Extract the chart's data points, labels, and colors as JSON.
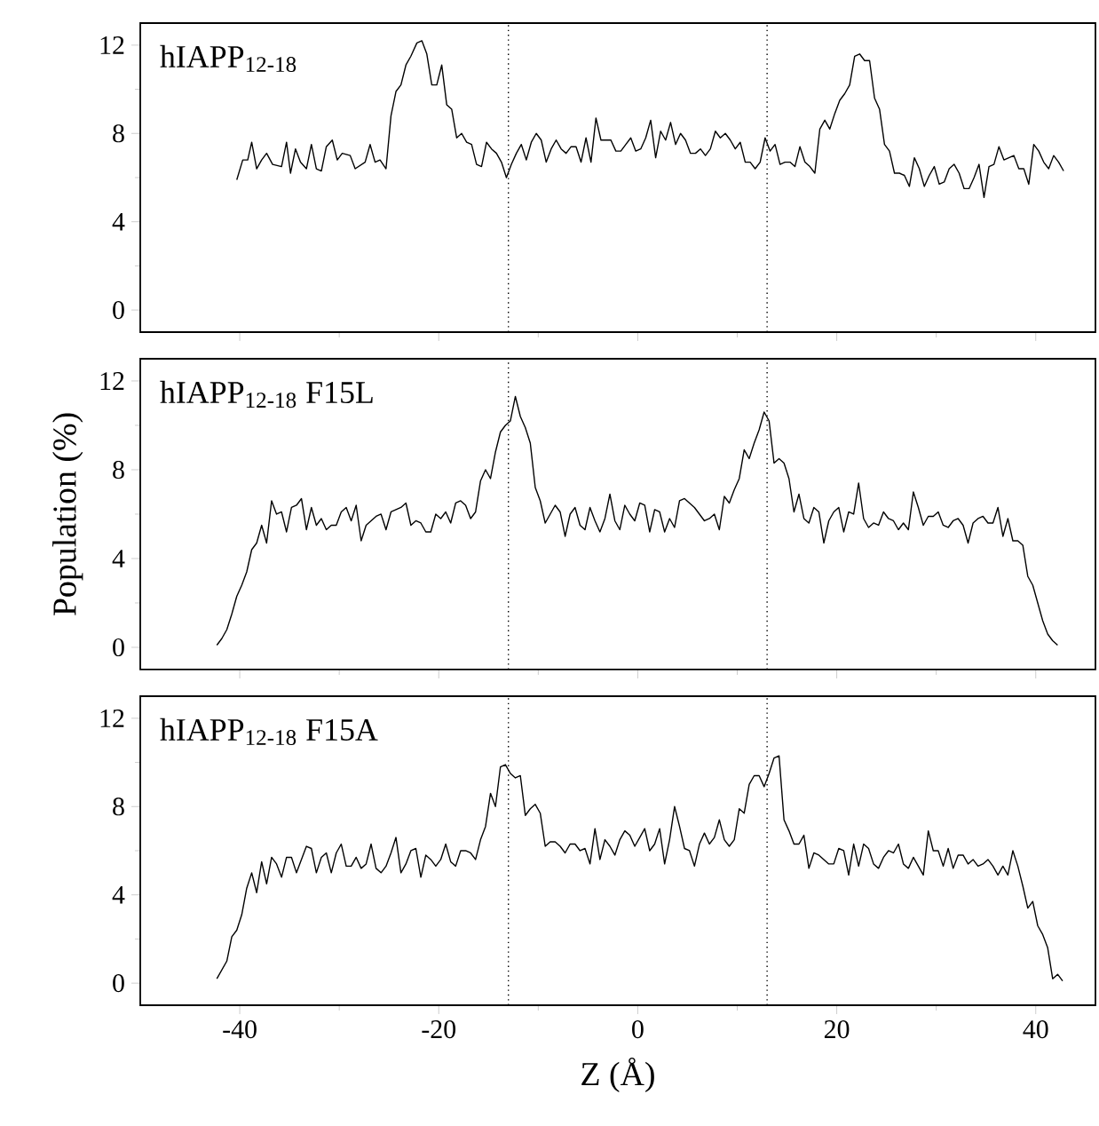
{
  "chart_data": [
    {
      "type": "line",
      "title": "hIAPP$_{12-18}$",
      "xlim": [
        -50,
        46
      ],
      "ylim": [
        -1,
        13
      ],
      "xticks": [
        -40,
        -20,
        0,
        20,
        40
      ],
      "yticks": [
        0,
        4,
        8,
        12
      ],
      "tick_labels": "y",
      "marker": "none",
      "line_style": "solid",
      "ref_lines": [
        {
          "axis": "x",
          "value": -13,
          "line_style": "dotted",
          "color": "#000000"
        },
        {
          "axis": "x",
          "value": 13,
          "line_style": "dotted",
          "color": "#000000"
        }
      ],
      "series": [
        {
          "color": "#000000",
          "x": [
            -40.3,
            -39.7,
            -39.2,
            -38.8,
            -38.3,
            -37.8,
            -37.3,
            -36.7,
            -35.8,
            -35.3,
            -34.9,
            -34.4,
            -33.9,
            -33.3,
            -32.8,
            -32.3,
            -31.8,
            -31.3,
            -30.7,
            -30.2,
            -29.7,
            -28.9,
            -28.4,
            -27.4,
            -26.9,
            -26.4,
            -25.9,
            -25.3,
            -24.8,
            -24.3,
            -23.8,
            -23.3,
            -22.8,
            -22.2,
            -21.7,
            -21.2,
            -20.7,
            -20.2,
            -19.7,
            -19.2,
            -18.7,
            -18.2,
            -17.7,
            -17.2,
            -16.7,
            -16.2,
            -15.7,
            -15.2,
            -14.7,
            -14.2,
            -13.7,
            -13.2,
            -12.7,
            -12.2,
            -11.7,
            -11.2,
            -10.7,
            -10.2,
            -9.7,
            -9.2,
            -8.7,
            -8.2,
            -7.7,
            -7.2,
            -6.7,
            -6.2,
            -5.7,
            -5.2,
            -4.7,
            -4.2,
            -3.7,
            -3.2,
            -2.7,
            -2.2,
            -1.7,
            -1.2,
            -0.7,
            -0.2,
            0.3,
            0.8,
            1.3,
            1.8,
            2.3,
            2.8,
            3.3,
            3.8,
            4.3,
            4.8,
            5.3,
            5.8,
            6.3,
            6.8,
            7.3,
            7.8,
            8.3,
            8.8,
            9.3,
            9.8,
            10.3,
            10.8,
            11.3,
            11.8,
            12.3,
            12.8,
            13.3,
            13.8,
            14.3,
            14.8,
            15.3,
            15.8,
            16.3,
            16.8,
            17.3,
            17.8,
            18.3,
            18.8,
            19.3,
            19.8,
            20.3,
            20.8,
            21.3,
            21.8,
            22.3,
            22.8,
            23.3,
            23.8,
            24.3,
            24.8,
            25.3,
            25.8,
            26.3,
            26.8,
            27.3,
            27.8,
            28.3,
            28.8,
            29.3,
            29.8,
            30.3,
            30.8,
            31.3,
            31.8,
            32.3,
            32.8,
            33.3,
            33.8,
            34.3,
            34.8,
            35.3,
            35.8,
            36.3,
            36.8,
            37.3,
            37.8,
            38.3,
            38.8,
            39.3,
            39.8,
            40.3,
            40.8,
            41.3,
            41.8,
            42.3,
            42.8
          ],
          "values": [
            5.9,
            6.8,
            6.8,
            7.6,
            6.4,
            6.8,
            7.1,
            6.6,
            6.5,
            7.6,
            6.2,
            7.3,
            6.7,
            6.4,
            7.5,
            6.4,
            6.3,
            7.4,
            7.7,
            6.8,
            7.1,
            7.0,
            6.4,
            6.7,
            7.5,
            6.7,
            6.8,
            6.4,
            8.8,
            9.9,
            10.2,
            11.1,
            11.5,
            12.1,
            12.2,
            11.6,
            10.2,
            10.2,
            11.1,
            9.3,
            9.1,
            7.8,
            8.0,
            7.6,
            7.5,
            6.6,
            6.5,
            7.6,
            7.3,
            7.1,
            6.7,
            6.0,
            6.6,
            7.1,
            7.5,
            6.8,
            7.6,
            8.0,
            7.7,
            6.7,
            7.3,
            7.7,
            7.3,
            7.1,
            7.4,
            7.4,
            6.7,
            7.8,
            6.7,
            8.7,
            7.7,
            7.7,
            7.7,
            7.2,
            7.2,
            7.5,
            7.8,
            7.2,
            7.3,
            7.8,
            8.6,
            6.9,
            8.1,
            7.7,
            8.5,
            7.5,
            8.0,
            7.7,
            7.1,
            7.1,
            7.3,
            7.0,
            7.3,
            8.1,
            7.8,
            8.0,
            7.7,
            7.3,
            7.6,
            6.7,
            6.7,
            6.4,
            6.7,
            7.8,
            7.2,
            7.5,
            6.6,
            6.7,
            6.7,
            6.5,
            7.4,
            6.7,
            6.5,
            6.2,
            8.2,
            8.6,
            8.2,
            8.9,
            9.5,
            9.8,
            10.2,
            11.5,
            11.6,
            11.3,
            11.3,
            9.6,
            9.1,
            7.5,
            7.2,
            6.2,
            6.2,
            6.1,
            5.6,
            6.9,
            6.4,
            5.6,
            6.1,
            6.5,
            5.7,
            5.8,
            6.4,
            6.6,
            6.2,
            5.5,
            5.5,
            6.0,
            6.6,
            5.1,
            6.5,
            6.6,
            7.4,
            6.8,
            6.9,
            7.0,
            6.4,
            6.4,
            5.7,
            7.5,
            7.2,
            6.7,
            6.4,
            7.0,
            6.7,
            6.3
          ]
        }
      ]
    },
    {
      "type": "line",
      "title": "hIAPP$_{12-18}$ F15L",
      "ylabel": "Population (%)",
      "xlim": [
        -50,
        46
      ],
      "ylim": [
        -1,
        13
      ],
      "xticks": [
        -40,
        -20,
        0,
        20,
        40
      ],
      "yticks": [
        0,
        4,
        8,
        12
      ],
      "tick_labels": "y",
      "marker": "none",
      "line_style": "solid",
      "ref_lines": [
        {
          "axis": "x",
          "value": -13,
          "line_style": "dotted",
          "color": "#000000"
        },
        {
          "axis": "x",
          "value": 13,
          "line_style": "dotted",
          "color": "#000000"
        }
      ],
      "series": [
        {
          "color": "#000000",
          "x": [
            -42.3,
            -41.8,
            -41.3,
            -40.8,
            -40.3,
            -39.8,
            -39.3,
            -38.8,
            -38.3,
            -37.8,
            -37.3,
            -36.8,
            -36.3,
            -35.8,
            -35.3,
            -34.8,
            -34.3,
            -33.8,
            -33.3,
            -32.8,
            -32.3,
            -31.8,
            -31.3,
            -30.8,
            -30.3,
            -29.8,
            -29.3,
            -28.8,
            -28.3,
            -27.8,
            -27.3,
            -26.8,
            -26.3,
            -25.8,
            -25.3,
            -24.8,
            -24.3,
            -23.8,
            -23.3,
            -22.8,
            -22.3,
            -21.8,
            -21.3,
            -20.8,
            -20.3,
            -19.8,
            -19.3,
            -18.8,
            -18.3,
            -17.8,
            -17.3,
            -16.8,
            -16.3,
            -15.8,
            -15.3,
            -14.8,
            -14.3,
            -13.8,
            -13.3,
            -12.8,
            -12.3,
            -11.8,
            -11.3,
            -10.8,
            -10.3,
            -9.8,
            -9.3,
            -8.8,
            -8.3,
            -7.8,
            -7.3,
            -6.8,
            -6.3,
            -5.8,
            -5.3,
            -4.8,
            -4.3,
            -3.8,
            -3.3,
            -2.8,
            -2.3,
            -1.8,
            -1.3,
            -0.8,
            -0.3,
            0.2,
            0.7,
            1.2,
            1.7,
            2.2,
            2.7,
            3.2,
            3.7,
            4.2,
            4.7,
            5.2,
            5.7,
            6.2,
            6.7,
            7.2,
            7.7,
            8.2,
            8.7,
            9.2,
            9.7,
            10.2,
            10.7,
            11.2,
            11.7,
            12.2,
            12.7,
            13.2,
            13.7,
            14.2,
            14.7,
            15.2,
            15.7,
            16.2,
            16.7,
            17.2,
            17.7,
            18.2,
            18.7,
            19.2,
            19.7,
            20.2,
            20.7,
            21.2,
            21.7,
            22.2,
            22.7,
            23.2,
            23.7,
            24.2,
            24.7,
            25.2,
            25.7,
            26.2,
            26.7,
            27.2,
            27.7,
            28.2,
            28.7,
            29.2,
            29.7,
            30.2,
            30.7,
            31.2,
            31.7,
            32.2,
            32.7,
            33.2,
            33.7,
            34.2,
            34.7,
            35.2,
            35.7,
            36.2,
            36.7,
            37.2,
            37.7,
            38.2,
            38.7,
            39.2,
            39.7,
            40.2,
            40.7,
            41.2,
            41.7,
            42.2
          ],
          "values": [
            0.1,
            0.4,
            0.8,
            1.5,
            2.3,
            2.8,
            3.4,
            4.4,
            4.7,
            5.5,
            4.7,
            6.6,
            6.0,
            6.1,
            5.2,
            6.3,
            6.4,
            6.7,
            5.3,
            6.3,
            5.5,
            5.8,
            5.3,
            5.5,
            5.5,
            6.1,
            6.3,
            5.7,
            6.4,
            4.8,
            5.5,
            5.7,
            5.9,
            6.0,
            5.3,
            6.1,
            6.2,
            6.3,
            6.5,
            5.5,
            5.7,
            5.6,
            5.2,
            5.2,
            6.0,
            5.8,
            6.1,
            5.6,
            6.5,
            6.6,
            6.4,
            5.8,
            6.1,
            7.5,
            8.0,
            7.6,
            8.8,
            9.7,
            10.0,
            10.2,
            11.3,
            10.4,
            9.9,
            9.2,
            7.2,
            6.6,
            5.6,
            6.0,
            6.4,
            6.1,
            5.0,
            6.0,
            6.3,
            5.5,
            5.3,
            6.3,
            5.7,
            5.2,
            5.8,
            6.9,
            5.7,
            5.3,
            6.4,
            6.0,
            5.7,
            6.5,
            6.4,
            5.2,
            6.2,
            6.1,
            5.2,
            5.8,
            5.4,
            6.6,
            6.7,
            6.5,
            6.3,
            6.0,
            5.7,
            5.8,
            6.0,
            5.3,
            6.8,
            6.5,
            7.1,
            7.6,
            8.9,
            8.5,
            9.2,
            9.8,
            10.6,
            10.2,
            8.3,
            8.5,
            8.3,
            7.6,
            6.1,
            6.9,
            5.8,
            5.6,
            6.3,
            6.1,
            4.7,
            5.7,
            6.1,
            6.3,
            5.2,
            6.1,
            6.0,
            7.4,
            5.8,
            5.4,
            5.6,
            5.5,
            6.1,
            5.8,
            5.7,
            5.3,
            5.6,
            5.3,
            7.0,
            6.3,
            5.5,
            5.9,
            5.9,
            6.1,
            5.5,
            5.4,
            5.7,
            5.8,
            5.5,
            4.7,
            5.6,
            5.8,
            5.9,
            5.6,
            5.6,
            6.3,
            5.0,
            5.8,
            4.8,
            4.8,
            4.6,
            3.2,
            2.8,
            2.0,
            1.2,
            0.6,
            0.3,
            0.1
          ]
        }
      ]
    },
    {
      "type": "line",
      "title": "hIAPP$_{12-18}$ F15A",
      "xlabel": "Z (Å)",
      "xlim": [
        -50,
        46
      ],
      "ylim": [
        -1,
        13
      ],
      "xticks": [
        -40,
        -20,
        0,
        20,
        40
      ],
      "yticks": [
        0,
        4,
        8,
        12
      ],
      "marker": "none",
      "line_style": "solid",
      "ref_lines": [
        {
          "axis": "x",
          "value": -13,
          "line_style": "dotted",
          "color": "#000000"
        },
        {
          "axis": "x",
          "value": 13,
          "line_style": "dotted",
          "color": "#000000"
        }
      ],
      "series": [
        {
          "color": "#000000",
          "x": [
            -42.3,
            -41.3,
            -40.8,
            -40.3,
            -39.8,
            -39.3,
            -38.8,
            -38.3,
            -37.8,
            -37.3,
            -36.8,
            -36.3,
            -35.8,
            -35.3,
            -34.8,
            -34.3,
            -33.8,
            -33.3,
            -32.8,
            -32.3,
            -31.8,
            -31.3,
            -30.8,
            -30.3,
            -29.8,
            -29.3,
            -28.8,
            -28.3,
            -27.8,
            -27.3,
            -26.8,
            -26.3,
            -25.8,
            -25.3,
            -24.8,
            -24.3,
            -23.8,
            -23.3,
            -22.8,
            -22.3,
            -21.8,
            -21.3,
            -20.8,
            -20.3,
            -19.8,
            -19.3,
            -18.8,
            -18.3,
            -17.8,
            -17.3,
            -16.8,
            -16.3,
            -15.8,
            -15.3,
            -14.8,
            -14.3,
            -13.8,
            -13.3,
            -12.8,
            -12.3,
            -11.8,
            -11.3,
            -10.8,
            -10.3,
            -9.8,
            -9.3,
            -8.8,
            -8.3,
            -7.8,
            -7.3,
            -6.8,
            -6.3,
            -5.8,
            -5.3,
            -4.8,
            -4.3,
            -3.8,
            -3.3,
            -2.8,
            -2.3,
            -1.8,
            -1.3,
            -0.8,
            -0.3,
            0.2,
            0.7,
            1.2,
            1.7,
            2.2,
            2.7,
            3.2,
            3.7,
            4.2,
            4.7,
            5.2,
            5.7,
            6.2,
            6.7,
            7.2,
            7.7,
            8.2,
            8.7,
            9.2,
            9.7,
            10.2,
            10.7,
            11.2,
            11.7,
            12.2,
            12.7,
            13.2,
            13.7,
            14.2,
            14.7,
            15.2,
            15.7,
            16.2,
            16.7,
            17.2,
            17.7,
            18.2,
            18.7,
            19.2,
            19.7,
            20.2,
            20.7,
            21.2,
            21.7,
            22.2,
            22.7,
            23.2,
            23.7,
            24.2,
            24.7,
            25.2,
            25.7,
            26.2,
            26.7,
            27.2,
            27.7,
            28.2,
            28.7,
            29.2,
            29.7,
            30.2,
            30.7,
            31.2,
            31.7,
            32.2,
            32.7,
            33.2,
            33.7,
            34.2,
            34.7,
            35.2,
            35.7,
            36.2,
            36.7,
            37.2,
            37.7,
            38.2,
            38.7,
            39.2,
            39.7,
            40.2,
            40.7,
            41.2,
            41.7,
            42.2,
            42.7
          ],
          "values": [
            0.2,
            1.0,
            2.1,
            2.4,
            3.1,
            4.3,
            5.0,
            4.1,
            5.5,
            4.5,
            5.7,
            5.4,
            4.8,
            5.7,
            5.7,
            5.0,
            5.6,
            6.2,
            6.1,
            5.0,
            5.7,
            5.9,
            5.0,
            5.9,
            6.3,
            5.3,
            5.3,
            5.7,
            5.2,
            5.4,
            6.3,
            5.2,
            5.0,
            5.3,
            5.9,
            6.6,
            5.0,
            5.4,
            6.0,
            6.1,
            4.8,
            5.8,
            5.6,
            5.3,
            5.6,
            6.3,
            5.5,
            5.3,
            6.0,
            6.0,
            5.9,
            5.6,
            6.5,
            7.1,
            8.6,
            8.0,
            9.8,
            9.9,
            9.5,
            9.3,
            9.4,
            7.6,
            7.9,
            8.1,
            7.7,
            6.2,
            6.4,
            6.4,
            6.2,
            5.9,
            6.3,
            6.3,
            6.0,
            6.1,
            5.4,
            7.0,
            5.6,
            6.5,
            6.2,
            5.8,
            6.5,
            6.9,
            6.7,
            6.2,
            6.6,
            7.0,
            6.0,
            6.3,
            7.0,
            5.4,
            6.5,
            8.0,
            7.1,
            6.1,
            6.0,
            5.3,
            6.3,
            6.8,
            6.3,
            6.6,
            7.4,
            6.5,
            6.2,
            6.5,
            7.9,
            7.7,
            9.0,
            9.4,
            9.4,
            8.9,
            9.5,
            10.2,
            10.3,
            7.4,
            6.9,
            6.3,
            6.3,
            6.7,
            5.2,
            5.9,
            5.8,
            5.6,
            5.4,
            5.4,
            6.1,
            6.0,
            4.9,
            6.3,
            5.3,
            6.3,
            6.1,
            5.4,
            5.2,
            5.7,
            6.0,
            5.9,
            6.3,
            5.4,
            5.2,
            5.7,
            5.3,
            4.9,
            6.9,
            6.0,
            6.0,
            5.3,
            6.1,
            5.2,
            5.8,
            5.8,
            5.4,
            5.6,
            5.3,
            5.4,
            5.6,
            5.3,
            4.9,
            5.3,
            4.9,
            6.0,
            5.3,
            4.4,
            3.4,
            3.7,
            2.6,
            2.2,
            1.6,
            0.2,
            0.4,
            0.1
          ]
        }
      ]
    }
  ]
}
